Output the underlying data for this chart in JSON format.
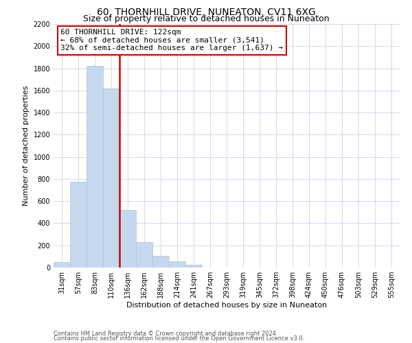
{
  "title": "60, THORNHILL DRIVE, NUNEATON, CV11 6XG",
  "subtitle": "Size of property relative to detached houses in Nuneaton",
  "bar_labels": [
    "31sqm",
    "57sqm",
    "83sqm",
    "110sqm",
    "136sqm",
    "162sqm",
    "188sqm",
    "214sqm",
    "241sqm",
    "267sqm",
    "293sqm",
    "319sqm",
    "345sqm",
    "372sqm",
    "398sqm",
    "424sqm",
    "450sqm",
    "476sqm",
    "503sqm",
    "529sqm",
    "555sqm"
  ],
  "bar_values": [
    50,
    775,
    1820,
    1615,
    520,
    230,
    108,
    55,
    25,
    0,
    0,
    0,
    0,
    0,
    0,
    0,
    0,
    0,
    0,
    0,
    0
  ],
  "bar_color": "#c5d8ed",
  "bar_edge_color": "#a8c4de",
  "vline_x": 3.5,
  "vline_color": "#cc0000",
  "annotation_title": "60 THORNHILL DRIVE: 122sqm",
  "annotation_line1": "← 68% of detached houses are smaller (3,541)",
  "annotation_line2": "32% of semi-detached houses are larger (1,637) →",
  "annotation_box_edge_color": "#cc0000",
  "annotation_box_face_color": "#ffffff",
  "xlabel": "Distribution of detached houses by size in Nuneaton",
  "ylabel": "Number of detached properties",
  "ylim": [
    0,
    2200
  ],
  "yticks": [
    0,
    200,
    400,
    600,
    800,
    1000,
    1200,
    1400,
    1600,
    1800,
    2000,
    2200
  ],
  "footnote_line1": "Contains HM Land Registry data © Crown copyright and database right 2024.",
  "footnote_line2": "Contains public sector information licensed under the Open Government Licence v3.0.",
  "background_color": "#ffffff",
  "grid_color": "#d0d8e8",
  "title_fontsize": 10,
  "subtitle_fontsize": 9,
  "annot_fontsize": 8,
  "axis_fontsize": 8,
  "tick_fontsize": 7,
  "footnote_fontsize": 6
}
